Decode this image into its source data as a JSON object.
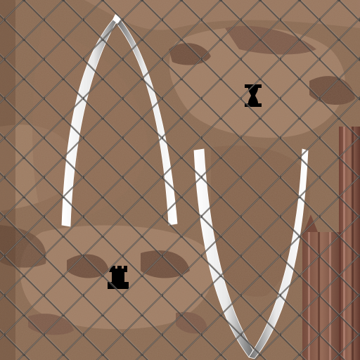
{
  "texture": {
    "kind": "game-texture-atlas",
    "palette": {
      "base": "#8a6a52",
      "light": "#b59278",
      "dark": "#5e4232",
      "speckle": "#7a5a45",
      "fence": "#4a4a4a",
      "fence_highlight": "#9a8a80",
      "stripe": "#8b5a4a",
      "stripe_dark": "#5a3028",
      "blade_edge": "#ffffff",
      "blade_shade": "#6a6a6a",
      "emblem": "#000000"
    },
    "overlay": "chain-link-fence",
    "elements": {
      "upper_blade": "upward-pointed-arch",
      "lower_blade": "downward-pointed-arch",
      "emblems": [
        "rook-icon",
        "hourglass-icon"
      ]
    }
  }
}
